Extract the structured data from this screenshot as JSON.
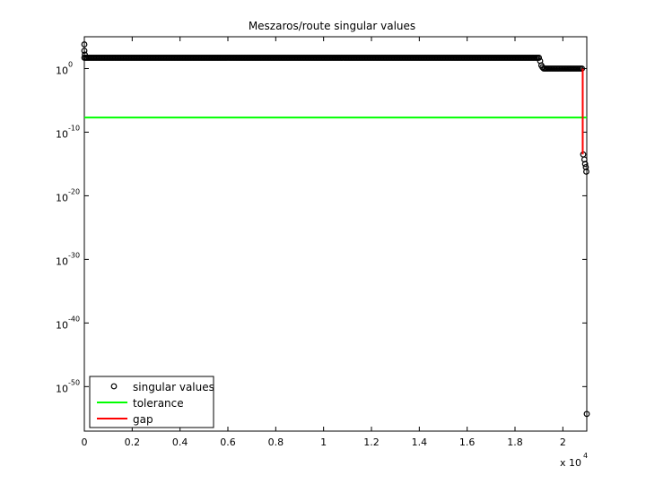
{
  "chart_data": {
    "type": "scatter",
    "title": "Meszaros/route singular values",
    "xlabel": "",
    "ylabel": "",
    "x_multiplier_label": {
      "base": "x 10",
      "exponent": "4"
    },
    "xlim": [
      0,
      2.1
    ],
    "x_ticks": [
      0,
      0.2,
      0.4,
      0.6,
      0.8,
      1,
      1.2,
      1.4,
      1.6,
      1.8,
      2
    ],
    "x_tick_labels": [
      "0",
      "0.2",
      "0.4",
      "0.6",
      "0.8",
      "1",
      "1.2",
      "1.4",
      "1.6",
      "1.8",
      "2"
    ],
    "y_scale": "log",
    "ylim_log10": [
      -57,
      5
    ],
    "y_ticks_log10": [
      0,
      -10,
      -20,
      -30,
      -40,
      -50
    ],
    "y_tick_labels": [
      {
        "base": "10",
        "exponent": "0"
      },
      {
        "base": "10",
        "exponent": "-10"
      },
      {
        "base": "10",
        "exponent": "-20"
      },
      {
        "base": "10",
        "exponent": "-30"
      },
      {
        "base": "10",
        "exponent": "-40"
      },
      {
        "base": "10",
        "exponent": "-50"
      }
    ],
    "grid": false,
    "legend_position": "bottom-left",
    "series": [
      {
        "name": "singular values",
        "style": "markers",
        "color": "#000000",
        "segments_log10": [
          {
            "x_start": 0.0,
            "x_end": 1.9,
            "log_y_start": 1.7,
            "log_y_end": 1.7
          },
          {
            "x_start": 1.92,
            "x_end": 2.08,
            "log_y_start": 0.0,
            "log_y_end": 0.0
          }
        ],
        "points_log10": [
          {
            "x": 0.0,
            "log_y": 3.8
          },
          {
            "x": 0.0,
            "log_y": 2.8
          },
          {
            "x": 0.002,
            "log_y": 2.2
          },
          {
            "x": 1.905,
            "log_y": 1.2
          },
          {
            "x": 1.91,
            "log_y": 0.5
          },
          {
            "x": 1.915,
            "log_y": 0.2
          },
          {
            "x": 2.085,
            "log_y": -13.5
          },
          {
            "x": 2.09,
            "log_y": -14.3
          },
          {
            "x": 2.093,
            "log_y": -15.0
          },
          {
            "x": 2.096,
            "log_y": -15.5
          },
          {
            "x": 2.098,
            "log_y": -16.2
          },
          {
            "x": 2.1,
            "log_y": -54.3
          }
        ]
      },
      {
        "name": "tolerance",
        "style": "line",
        "color": "#00ff00",
        "x": [
          0,
          2.1
        ],
        "log_y": [
          -7.7,
          -7.7
        ]
      },
      {
        "name": "gap",
        "style": "line",
        "color": "#ff0000",
        "x": [
          2.083,
          2.083
        ],
        "log_y": [
          0.0,
          -13.5
        ]
      }
    ]
  }
}
